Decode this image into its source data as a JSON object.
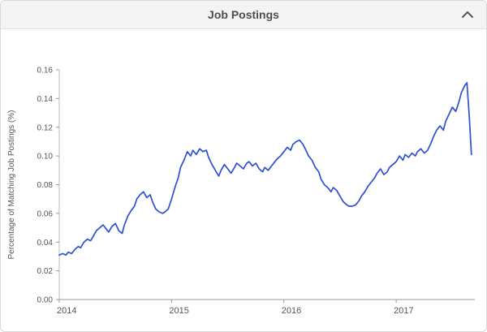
{
  "header": {
    "title": "Job Postings",
    "collapse_icon": "chevron-up-icon"
  },
  "colors": {
    "line": "#2d4fd0",
    "header_bg": "#f4f4f4",
    "axis": "#999999",
    "tick_text": "#555555",
    "title_text": "#4d4d4d"
  },
  "chart_data": {
    "type": "line",
    "title": "Job Postings",
    "xlabel": "",
    "ylabel": "Percentage of Matching Job Postings (%)",
    "x_ticks": [
      2014,
      2015,
      2016,
      2017
    ],
    "y_ticks": [
      0.0,
      0.02,
      0.04,
      0.06,
      0.08,
      0.1,
      0.12,
      0.14,
      0.16
    ],
    "xlim": [
      2014,
      2017.7
    ],
    "ylim": [
      0,
      0.16
    ],
    "grid": false,
    "legend": false,
    "line_color": "#2d4fd0",
    "series": [
      {
        "name": "Percentage of Matching Job Postings",
        "points": [
          [
            2014.0,
            0.031
          ],
          [
            2014.03,
            0.032
          ],
          [
            2014.06,
            0.031
          ],
          [
            2014.08,
            0.033
          ],
          [
            2014.11,
            0.032
          ],
          [
            2014.14,
            0.035
          ],
          [
            2014.17,
            0.037
          ],
          [
            2014.19,
            0.036
          ],
          [
            2014.22,
            0.04
          ],
          [
            2014.25,
            0.042
          ],
          [
            2014.28,
            0.041
          ],
          [
            2014.31,
            0.045
          ],
          [
            2014.33,
            0.048
          ],
          [
            2014.36,
            0.05
          ],
          [
            2014.39,
            0.052
          ],
          [
            2014.42,
            0.049
          ],
          [
            2014.44,
            0.047
          ],
          [
            2014.47,
            0.051
          ],
          [
            2014.5,
            0.053
          ],
          [
            2014.53,
            0.048
          ],
          [
            2014.56,
            0.046
          ],
          [
            2014.58,
            0.052
          ],
          [
            2014.61,
            0.058
          ],
          [
            2014.64,
            0.062
          ],
          [
            2014.67,
            0.065
          ],
          [
            2014.69,
            0.07
          ],
          [
            2014.72,
            0.073
          ],
          [
            2014.75,
            0.075
          ],
          [
            2014.78,
            0.071
          ],
          [
            2014.81,
            0.073
          ],
          [
            2014.83,
            0.068
          ],
          [
            2014.86,
            0.063
          ],
          [
            2014.89,
            0.061
          ],
          [
            2014.92,
            0.06
          ],
          [
            2014.94,
            0.061
          ],
          [
            2014.97,
            0.063
          ],
          [
            2015.0,
            0.07
          ],
          [
            2015.03,
            0.078
          ],
          [
            2015.06,
            0.085
          ],
          [
            2015.08,
            0.092
          ],
          [
            2015.11,
            0.097
          ],
          [
            2015.14,
            0.103
          ],
          [
            2015.17,
            0.1
          ],
          [
            2015.19,
            0.104
          ],
          [
            2015.22,
            0.101
          ],
          [
            2015.25,
            0.105
          ],
          [
            2015.28,
            0.103
          ],
          [
            2015.31,
            0.104
          ],
          [
            2015.33,
            0.099
          ],
          [
            2015.36,
            0.094
          ],
          [
            2015.39,
            0.09
          ],
          [
            2015.42,
            0.086
          ],
          [
            2015.44,
            0.09
          ],
          [
            2015.47,
            0.094
          ],
          [
            2015.5,
            0.091
          ],
          [
            2015.53,
            0.088
          ],
          [
            2015.56,
            0.092
          ],
          [
            2015.58,
            0.095
          ],
          [
            2015.61,
            0.093
          ],
          [
            2015.64,
            0.091
          ],
          [
            2015.67,
            0.095
          ],
          [
            2015.69,
            0.096
          ],
          [
            2015.72,
            0.093
          ],
          [
            2015.75,
            0.095
          ],
          [
            2015.78,
            0.091
          ],
          [
            2015.81,
            0.089
          ],
          [
            2015.83,
            0.092
          ],
          [
            2015.86,
            0.09
          ],
          [
            2015.89,
            0.093
          ],
          [
            2015.92,
            0.096
          ],
          [
            2015.94,
            0.098
          ],
          [
            2015.97,
            0.1
          ],
          [
            2016.0,
            0.103
          ],
          [
            2016.03,
            0.106
          ],
          [
            2016.06,
            0.104
          ],
          [
            2016.08,
            0.108
          ],
          [
            2016.11,
            0.11
          ],
          [
            2016.14,
            0.111
          ],
          [
            2016.17,
            0.108
          ],
          [
            2016.19,
            0.105
          ],
          [
            2016.22,
            0.1
          ],
          [
            2016.25,
            0.097
          ],
          [
            2016.28,
            0.092
          ],
          [
            2016.31,
            0.089
          ],
          [
            2016.33,
            0.084
          ],
          [
            2016.36,
            0.08
          ],
          [
            2016.39,
            0.078
          ],
          [
            2016.42,
            0.075
          ],
          [
            2016.44,
            0.078
          ],
          [
            2016.47,
            0.076
          ],
          [
            2016.5,
            0.072
          ],
          [
            2016.53,
            0.068
          ],
          [
            2016.56,
            0.066
          ],
          [
            2016.58,
            0.065
          ],
          [
            2016.61,
            0.065
          ],
          [
            2016.64,
            0.066
          ],
          [
            2016.67,
            0.069
          ],
          [
            2016.69,
            0.072
          ],
          [
            2016.72,
            0.075
          ],
          [
            2016.75,
            0.079
          ],
          [
            2016.78,
            0.082
          ],
          [
            2016.81,
            0.085
          ],
          [
            2016.83,
            0.088
          ],
          [
            2016.86,
            0.091
          ],
          [
            2016.89,
            0.087
          ],
          [
            2016.92,
            0.089
          ],
          [
            2016.94,
            0.092
          ],
          [
            2016.97,
            0.094
          ],
          [
            2017.0,
            0.096
          ],
          [
            2017.03,
            0.1
          ],
          [
            2017.06,
            0.097
          ],
          [
            2017.08,
            0.101
          ],
          [
            2017.11,
            0.099
          ],
          [
            2017.14,
            0.102
          ],
          [
            2017.17,
            0.1
          ],
          [
            2017.19,
            0.103
          ],
          [
            2017.22,
            0.105
          ],
          [
            2017.25,
            0.102
          ],
          [
            2017.28,
            0.104
          ],
          [
            2017.31,
            0.109
          ],
          [
            2017.33,
            0.113
          ],
          [
            2017.36,
            0.118
          ],
          [
            2017.39,
            0.121
          ],
          [
            2017.42,
            0.118
          ],
          [
            2017.44,
            0.124
          ],
          [
            2017.47,
            0.129
          ],
          [
            2017.5,
            0.134
          ],
          [
            2017.53,
            0.131
          ],
          [
            2017.56,
            0.138
          ],
          [
            2017.58,
            0.144
          ],
          [
            2017.61,
            0.149
          ],
          [
            2017.63,
            0.151
          ],
          [
            2017.65,
            0.128
          ],
          [
            2017.67,
            0.101
          ]
        ]
      }
    ]
  }
}
